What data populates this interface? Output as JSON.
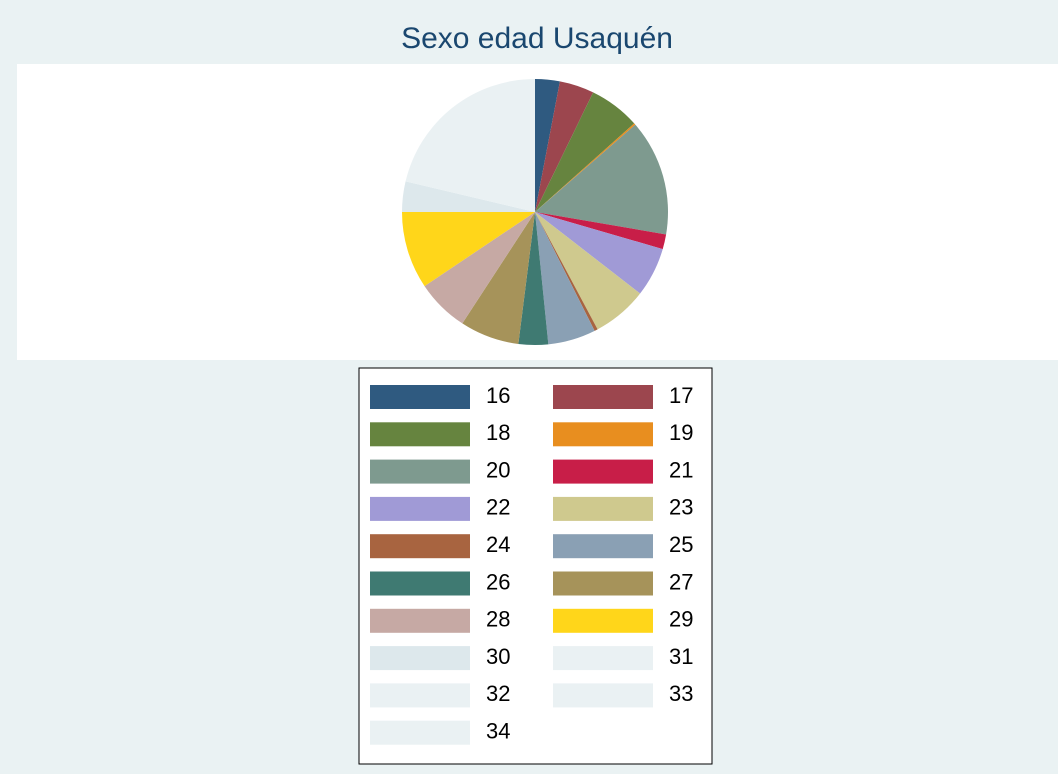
{
  "chart_data": {
    "type": "pie",
    "title": "Sexo edad Usaquén",
    "categories": [
      "16",
      "17",
      "18",
      "19",
      "20",
      "21",
      "22",
      "23",
      "24",
      "25",
      "26",
      "27",
      "28",
      "29",
      "30",
      "31",
      "32",
      "33",
      "34"
    ],
    "values": [
      3,
      4.2,
      6.2,
      0.2,
      14.1,
      1.8,
      6,
      6.7,
      0.4,
      5.8,
      3.6,
      7.2,
      6.4,
      9.4,
      3.7,
      21.3,
      0,
      0,
      0
    ],
    "colors": [
      "#2f5a80",
      "#9c464e",
      "#66843f",
      "#e88e1f",
      "#7e9a8f",
      "#c81e48",
      "#a09ad6",
      "#cfc98e",
      "#a86440",
      "#8aa0b4",
      "#3f7a72",
      "#a6935a",
      "#c6a9a4",
      "#ffd61a",
      "#dde8ec",
      "#eaf1f3",
      "#eaf1f3",
      "#eaf1f3",
      "#eaf1f3"
    ],
    "legend_columns": 2
  }
}
